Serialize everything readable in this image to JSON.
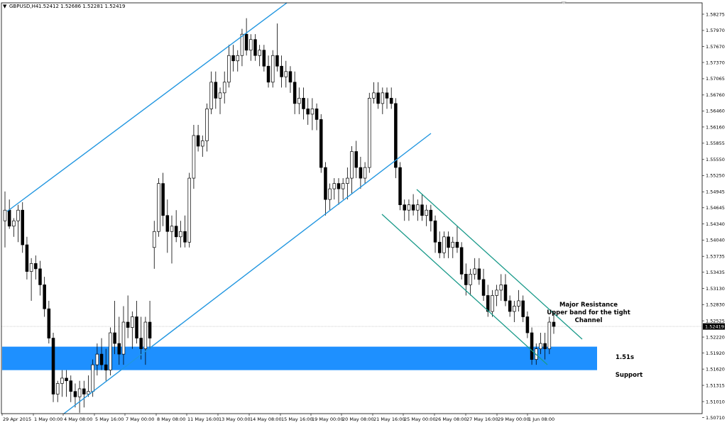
{
  "header": {
    "dropdown_glyph": "▼",
    "symbol": "GBPUSD,H4",
    "ohlc": "1.52412 1.52686 1.52281 1.52419"
  },
  "colors": {
    "channel_line": "#2196e0",
    "tight_channel_line": "#1a9a8a",
    "support_band": "#1e90ff",
    "bull_body": "#ffffff",
    "bear_body": "#000000",
    "current_price_label_bg": "#000000"
  },
  "chart_data": {
    "type": "candlestick",
    "y_ticks": [
      "1.58275",
      "1.57970",
      "1.57670",
      "1.57370",
      "1.57065",
      "1.56760",
      "1.56460",
      "1.56160",
      "1.55855",
      "1.55550",
      "1.55250",
      "1.54945",
      "1.54645",
      "1.54340",
      "1.54040",
      "1.53735",
      "1.53435",
      "1.53130",
      "1.52830",
      "1.52525",
      "1.52220",
      "1.51920",
      "1.51620",
      "1.51315",
      "1.51010",
      "1.50710"
    ],
    "y_range": [
      1.506,
      1.5842
    ],
    "x_ticks": [
      "29 Apr 2015",
      "1 May 00:00",
      "4 May 08:00",
      "5 May 16:00",
      "7 May 00:00",
      "8 May 08:00",
      "11 May 16:00",
      "13 May 00:00",
      "14 May 08:00",
      "15 May 16:00",
      "19 May 00:00",
      "20 May 08:00",
      "21 May 16:00",
      "25 May 00:00",
      "26 May 08:00",
      "27 May 16:00",
      "29 May 00:00",
      "1 Jun 08:00"
    ],
    "current_price": "1.52419",
    "candles": [
      [
        1.544,
        1.5495,
        1.539,
        1.546
      ],
      [
        1.546,
        1.548,
        1.5425,
        1.543
      ],
      [
        1.543,
        1.5445,
        1.541,
        1.544
      ],
      [
        1.544,
        1.547,
        1.54,
        1.546
      ],
      [
        1.546,
        1.5475,
        1.538,
        1.5395
      ],
      [
        1.5395,
        1.541,
        1.533,
        1.5345
      ],
      [
        1.5345,
        1.537,
        1.529,
        1.536
      ],
      [
        1.536,
        1.5375,
        1.533,
        1.535
      ],
      [
        1.535,
        1.5365,
        1.53,
        1.532
      ],
      [
        1.532,
        1.5335,
        1.526,
        1.5275
      ],
      [
        1.5275,
        1.529,
        1.521,
        1.522
      ],
      [
        1.522,
        1.523,
        1.51,
        1.5115
      ],
      [
        1.5115,
        1.514,
        1.51,
        1.5135
      ],
      [
        1.5135,
        1.516,
        1.511,
        1.5145
      ],
      [
        1.5145,
        1.516,
        1.511,
        1.514
      ],
      [
        1.514,
        1.515,
        1.51,
        1.512
      ],
      [
        1.512,
        1.5135,
        1.509,
        1.511
      ],
      [
        1.511,
        1.514,
        1.508,
        1.5125
      ],
      [
        1.5125,
        1.514,
        1.509,
        1.5115
      ],
      [
        1.5115,
        1.515,
        1.511,
        1.512
      ],
      [
        1.512,
        1.518,
        1.511,
        1.517
      ],
      [
        1.517,
        1.521,
        1.515,
        1.519
      ],
      [
        1.519,
        1.522,
        1.516,
        1.517
      ],
      [
        1.517,
        1.52,
        1.514,
        1.516
      ],
      [
        1.516,
        1.524,
        1.515,
        1.523
      ],
      [
        1.523,
        1.529,
        1.519,
        1.521
      ],
      [
        1.521,
        1.526,
        1.517,
        1.519
      ],
      [
        1.519,
        1.528,
        1.517,
        1.525
      ],
      [
        1.525,
        1.53,
        1.522,
        1.524
      ],
      [
        1.524,
        1.527,
        1.52,
        1.526
      ],
      [
        1.526,
        1.529,
        1.521,
        1.522
      ],
      [
        1.522,
        1.526,
        1.518,
        1.52
      ],
      [
        1.52,
        1.526,
        1.517,
        1.525
      ],
      [
        1.525,
        1.529,
        1.52,
        1.522
      ],
      [
        1.539,
        1.544,
        1.535,
        1.542
      ],
      [
        1.542,
        1.552,
        1.541,
        1.551
      ],
      [
        1.551,
        1.553,
        1.543,
        1.545
      ],
      [
        1.545,
        1.548,
        1.538,
        1.542
      ],
      [
        1.542,
        1.545,
        1.536,
        1.543
      ],
      [
        1.543,
        1.546,
        1.54,
        1.541
      ],
      [
        1.541,
        1.544,
        1.539,
        1.542
      ],
      [
        1.542,
        1.545,
        1.539,
        1.54
      ],
      [
        1.54,
        1.553,
        1.539,
        1.552
      ],
      [
        1.552,
        1.562,
        1.55,
        1.56
      ],
      [
        1.56,
        1.562,
        1.557,
        1.558
      ],
      [
        1.558,
        1.56,
        1.556,
        1.559
      ],
      [
        1.559,
        1.566,
        1.557,
        1.565
      ],
      [
        1.565,
        1.572,
        1.564,
        1.57
      ],
      [
        1.57,
        1.572,
        1.565,
        1.567
      ],
      [
        1.567,
        1.569,
        1.564,
        1.568
      ],
      [
        1.568,
        1.572,
        1.566,
        1.57
      ],
      [
        1.57,
        1.577,
        1.569,
        1.575
      ],
      [
        1.575,
        1.577,
        1.572,
        1.574
      ],
      [
        1.574,
        1.576,
        1.572,
        1.575
      ],
      [
        1.575,
        1.58,
        1.573,
        1.579
      ],
      [
        1.579,
        1.582,
        1.575,
        1.576
      ],
      [
        1.576,
        1.579,
        1.574,
        1.578
      ],
      [
        1.578,
        1.579,
        1.574,
        1.575
      ],
      [
        1.575,
        1.577,
        1.573,
        1.576
      ],
      [
        1.576,
        1.577,
        1.572,
        1.573
      ],
      [
        1.573,
        1.575,
        1.569,
        1.57
      ],
      [
        1.57,
        1.576,
        1.569,
        1.575
      ],
      [
        1.575,
        1.581,
        1.572,
        1.573
      ],
      [
        1.573,
        1.575,
        1.569,
        1.571
      ],
      [
        1.571,
        1.574,
        1.569,
        1.572
      ],
      [
        1.572,
        1.573,
        1.568,
        1.57
      ],
      [
        1.57,
        1.572,
        1.564,
        1.566
      ],
      [
        1.566,
        1.569,
        1.564,
        1.567
      ],
      [
        1.567,
        1.569,
        1.563,
        1.565
      ],
      [
        1.565,
        1.567,
        1.562,
        1.564
      ],
      [
        1.564,
        1.567,
        1.561,
        1.565
      ],
      [
        1.565,
        1.566,
        1.561,
        1.563
      ],
      [
        1.563,
        1.564,
        1.553,
        1.554
      ],
      [
        1.554,
        1.555,
        1.545,
        1.548
      ],
      [
        1.548,
        1.551,
        1.546,
        1.55
      ],
      [
        1.55,
        1.552,
        1.548,
        1.551
      ],
      [
        1.551,
        1.552,
        1.547,
        1.55
      ],
      [
        1.55,
        1.552,
        1.548,
        1.551
      ],
      [
        1.551,
        1.554,
        1.548,
        1.552
      ],
      [
        1.552,
        1.558,
        1.549,
        1.557
      ],
      [
        1.557,
        1.559,
        1.552,
        1.554
      ],
      [
        1.554,
        1.556,
        1.55,
        1.552
      ],
      [
        1.552,
        1.555,
        1.551,
        1.554
      ],
      [
        1.554,
        1.568,
        1.553,
        1.567
      ],
      [
        1.567,
        1.57,
        1.566,
        1.568
      ],
      [
        1.568,
        1.57,
        1.565,
        1.566
      ],
      [
        1.566,
        1.569,
        1.564,
        1.568
      ],
      [
        1.568,
        1.569,
        1.565,
        1.567
      ],
      [
        1.567,
        1.569,
        1.565,
        1.566
      ],
      [
        1.566,
        1.567,
        1.552,
        1.554
      ],
      [
        1.554,
        1.555,
        1.546,
        1.547
      ],
      [
        1.547,
        1.548,
        1.544,
        1.546
      ],
      [
        1.546,
        1.548,
        1.544,
        1.547
      ],
      [
        1.547,
        1.549,
        1.545,
        1.546
      ],
      [
        1.546,
        1.548,
        1.544,
        1.547
      ],
      [
        1.547,
        1.549,
        1.544,
        1.545
      ],
      [
        1.545,
        1.547,
        1.543,
        1.546
      ],
      [
        1.546,
        1.547,
        1.542,
        1.544
      ],
      [
        1.544,
        1.545,
        1.538,
        1.54
      ],
      [
        1.54,
        1.542,
        1.537,
        1.538
      ],
      [
        1.538,
        1.542,
        1.537,
        1.541
      ],
      [
        1.541,
        1.542,
        1.537,
        1.539
      ],
      [
        1.539,
        1.541,
        1.537,
        1.54
      ],
      [
        1.54,
        1.543,
        1.538,
        1.539
      ],
      [
        1.539,
        1.54,
        1.533,
        1.534
      ],
      [
        1.534,
        1.536,
        1.53,
        1.532
      ],
      [
        1.532,
        1.535,
        1.53,
        1.534
      ],
      [
        1.534,
        1.537,
        1.533,
        1.535
      ],
      [
        1.535,
        1.537,
        1.532,
        1.533
      ],
      [
        1.533,
        1.535,
        1.529,
        1.53
      ],
      [
        1.53,
        1.532,
        1.526,
        1.527
      ],
      [
        1.527,
        1.531,
        1.526,
        1.53
      ],
      [
        1.53,
        1.532,
        1.528,
        1.531
      ],
      [
        1.531,
        1.534,
        1.529,
        1.532
      ],
      [
        1.532,
        1.534,
        1.528,
        1.529
      ],
      [
        1.529,
        1.53,
        1.526,
        1.527
      ],
      [
        1.527,
        1.529,
        1.525,
        1.528
      ],
      [
        1.528,
        1.531,
        1.527,
        1.529
      ],
      [
        1.529,
        1.53,
        1.525,
        1.526
      ],
      [
        1.526,
        1.527,
        1.522,
        1.523
      ],
      [
        1.523,
        1.524,
        1.517,
        1.518
      ],
      [
        1.518,
        1.521,
        1.517,
        1.52
      ],
      [
        1.52,
        1.523,
        1.519,
        1.521
      ],
      [
        1.521,
        1.523,
        1.518,
        1.52
      ],
      [
        1.52,
        1.526,
        1.519,
        1.525
      ],
      [
        1.525,
        1.5269,
        1.5228,
        1.5242
      ]
    ]
  },
  "annotations": {
    "resistance_line1": "Major Resistance",
    "resistance_line2": "Upper band for the tight",
    "resistance_line3": "Channel",
    "support_level": "1.51s",
    "support_label": "Support"
  }
}
